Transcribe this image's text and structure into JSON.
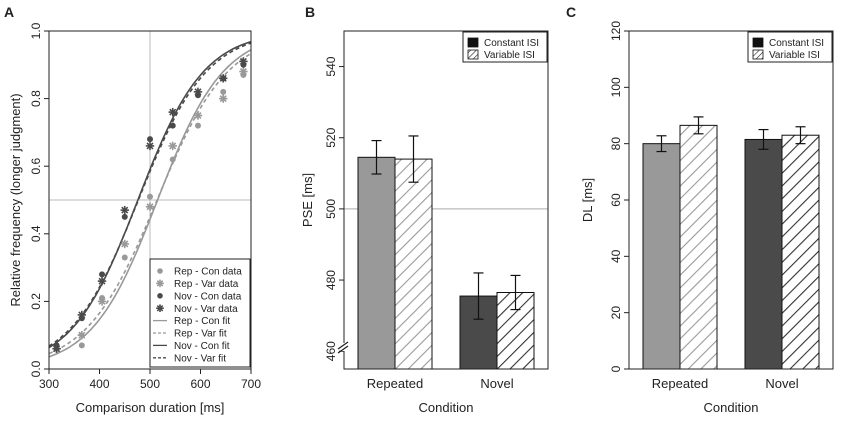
{
  "colors": {
    "rep": "#999999",
    "nov": "#4a4a4a",
    "axis": "#222222",
    "refline": "#bbbbbb",
    "hatchRep": "#9a9a9a",
    "hatchNov": "#333333"
  },
  "chart_data": [
    {
      "panel": "A",
      "type": "scatter",
      "xlabel": "Comparison duration [ms]",
      "ylabel": "Relative frequency (longer judgment)",
      "xlim": [
        300,
        700
      ],
      "ylim": [
        0,
        1
      ],
      "xticks": [
        "300",
        "400",
        "500",
        "600",
        "700"
      ],
      "yticks": [
        "0.0",
        "0.2",
        "0.4",
        "0.6",
        "0.8",
        "1.0"
      ],
      "reference_lines": {
        "x": 500,
        "y": 0.5
      },
      "series": [
        {
          "name": "Rep - Con data",
          "marker": "dot",
          "color": "rep",
          "x": [
            315,
            365,
            405,
            450,
            500,
            545,
            595,
            645,
            685
          ],
          "y": [
            0.06,
            0.07,
            0.21,
            0.33,
            0.51,
            0.62,
            0.72,
            0.82,
            0.87
          ]
        },
        {
          "name": "Rep - Var data",
          "marker": "star",
          "color": "rep",
          "x": [
            315,
            365,
            405,
            450,
            500,
            545,
            595,
            645,
            685
          ],
          "y": [
            0.06,
            0.1,
            0.2,
            0.37,
            0.48,
            0.66,
            0.75,
            0.8,
            0.88
          ]
        },
        {
          "name": "Nov - Con data",
          "marker": "dot",
          "color": "nov",
          "x": [
            315,
            365,
            405,
            450,
            500,
            545,
            595,
            645,
            685
          ],
          "y": [
            0.07,
            0.15,
            0.28,
            0.45,
            0.68,
            0.72,
            0.81,
            0.86,
            0.9
          ]
        },
        {
          "name": "Nov - Var data",
          "marker": "star",
          "color": "nov",
          "x": [
            315,
            365,
            405,
            450,
            500,
            545,
            595,
            645,
            685
          ],
          "y": [
            0.06,
            0.16,
            0.26,
            0.47,
            0.66,
            0.76,
            0.82,
            0.86,
            0.91
          ]
        }
      ],
      "fits": [
        {
          "name": "Rep - Con fit",
          "dash": "solid",
          "color": "rep",
          "pse": 515,
          "slope": 0.0153
        },
        {
          "name": "Rep - Var fit",
          "dash": "dashed",
          "color": "rep",
          "pse": 514,
          "slope": 0.0142
        },
        {
          "name": "Nov - Con fit",
          "dash": "solid",
          "color": "nov",
          "pse": 476,
          "slope": 0.0153
        },
        {
          "name": "Nov - Var fit",
          "dash": "dashed",
          "color": "nov",
          "pse": 477,
          "slope": 0.0148
        }
      ],
      "legend_position": "bottom-right"
    },
    {
      "panel": "B",
      "type": "bar",
      "xlabel": "Condition",
      "ylabel": "PSE [ms]",
      "categories": [
        "Repeated",
        "Novel"
      ],
      "ylim": [
        455,
        550
      ],
      "yticks": [
        "460",
        "480",
        "500",
        "520",
        "540"
      ],
      "axis_break": true,
      "reference_line": 500,
      "series": [
        {
          "name": "Constant ISI",
          "fill": "solid",
          "values": [
            514.5,
            475.5
          ],
          "errors": [
            4.7,
            6.5
          ]
        },
        {
          "name": "Variable ISI",
          "fill": "hatched",
          "values": [
            514.0,
            476.5
          ],
          "errors": [
            6.5,
            4.8
          ]
        }
      ],
      "legend_position": "top-right"
    },
    {
      "panel": "C",
      "type": "bar",
      "xlabel": "Condition",
      "ylabel": "DL [ms]",
      "categories": [
        "Repeated",
        "Novel"
      ],
      "ylim": [
        0,
        120
      ],
      "yticks": [
        "0",
        "20",
        "40",
        "60",
        "80",
        "100",
        "120"
      ],
      "series": [
        {
          "name": "Constant ISI",
          "fill": "solid",
          "values": [
            80.0,
            81.5
          ],
          "errors": [
            2.8,
            3.5
          ]
        },
        {
          "name": "Variable ISI",
          "fill": "hatched",
          "values": [
            86.5,
            83.0
          ],
          "errors": [
            3.0,
            3.0
          ]
        }
      ],
      "legend_position": "top-right"
    }
  ]
}
